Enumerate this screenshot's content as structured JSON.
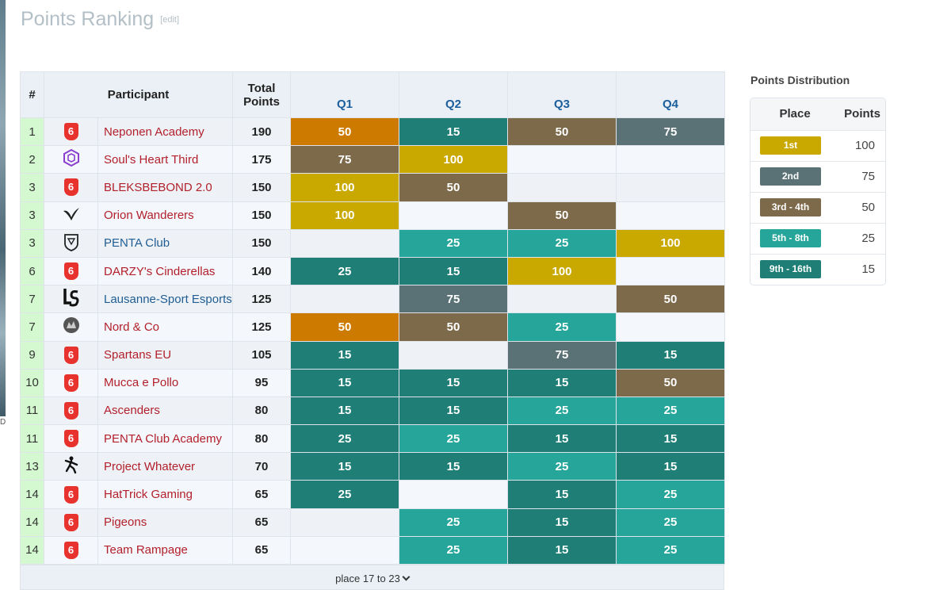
{
  "page": {
    "title": "Points Ranking",
    "edit": "[edit]"
  },
  "table": {
    "headers": {
      "place": "#",
      "participant": "Participant",
      "total": "Total Points",
      "q1": "Q1",
      "q2": "Q2",
      "q3": "Q3",
      "q4": "Q4"
    },
    "rows": [
      {
        "place": "1",
        "name": "Neponen Academy",
        "total": "190",
        "logo": "six-shield-icon",
        "q": [
          "50",
          "15",
          "50",
          "75"
        ],
        "tier": [
          "orange",
          "ninth",
          "third",
          "second"
        ]
      },
      {
        "place": "2",
        "name": "Soul's Heart Third",
        "total": "175",
        "logo": "hexagon-logo-icon",
        "q": [
          "75",
          "100",
          "",
          ""
        ],
        "tier": [
          "third",
          "first",
          "",
          ""
        ]
      },
      {
        "place": "3",
        "name": "BLEKSBEBOND 2.0",
        "total": "150",
        "logo": "six-shield-icon",
        "q": [
          "100",
          "50",
          "",
          ""
        ],
        "tier": [
          "first",
          "third",
          "",
          ""
        ]
      },
      {
        "place": "3",
        "name": "Orion Wanderers",
        "total": "150",
        "logo": "wing-logo-icon",
        "q": [
          "100",
          "",
          "50",
          ""
        ],
        "tier": [
          "first",
          "",
          "third",
          ""
        ]
      },
      {
        "place": "3",
        "name": "PENTA Club",
        "total": "150",
        "logo": "penta-shield-icon",
        "q": [
          "",
          "25",
          "25",
          "100"
        ],
        "tier": [
          "",
          "fifth",
          "fifth",
          "first"
        ],
        "blue": true
      },
      {
        "place": "6",
        "name": "DARZY's Cinderellas",
        "total": "140",
        "logo": "six-shield-icon",
        "q": [
          "25",
          "15",
          "100",
          ""
        ],
        "tier": [
          "ninth",
          "ninth",
          "first",
          ""
        ]
      },
      {
        "place": "7",
        "name": "Lausanne-Sport Esports",
        "total": "125",
        "logo": "ls-logo-icon",
        "q": [
          "",
          "75",
          "",
          "50"
        ],
        "tier": [
          "",
          "second",
          "",
          "third"
        ],
        "blue": true
      },
      {
        "place": "7",
        "name": "Nord & Co",
        "total": "125",
        "logo": "nord-logo-icon",
        "q": [
          "50",
          "50",
          "25",
          ""
        ],
        "tier": [
          "orange",
          "third",
          "fifth",
          ""
        ]
      },
      {
        "place": "9",
        "name": "Spartans EU",
        "total": "105",
        "logo": "six-shield-icon",
        "q": [
          "15",
          "",
          "75",
          "15"
        ],
        "tier": [
          "ninth",
          "",
          "second",
          "ninth"
        ]
      },
      {
        "place": "10",
        "name": "Mucca e Pollo",
        "total": "95",
        "logo": "six-shield-icon",
        "q": [
          "15",
          "15",
          "15",
          "50"
        ],
        "tier": [
          "ninth",
          "ninth",
          "ninth",
          "third"
        ]
      },
      {
        "place": "11",
        "name": "Ascenders",
        "total": "80",
        "logo": "six-shield-icon",
        "q": [
          "15",
          "15",
          "25",
          "25"
        ],
        "tier": [
          "ninth",
          "ninth",
          "fifth",
          "fifth"
        ]
      },
      {
        "place": "11",
        "name": "PENTA Club Academy",
        "total": "80",
        "logo": "six-shield-icon",
        "q": [
          "25",
          "25",
          "15",
          "15"
        ],
        "tier": [
          "ninth",
          "fifth",
          "ninth",
          "ninth"
        ]
      },
      {
        "place": "13",
        "name": "Project Whatever",
        "total": "70",
        "logo": "figure-logo-icon",
        "q": [
          "15",
          "15",
          "25",
          "15"
        ],
        "tier": [
          "ninth",
          "ninth",
          "fifth",
          "ninth"
        ]
      },
      {
        "place": "14",
        "name": "HatTrick Gaming",
        "total": "65",
        "logo": "six-shield-icon",
        "q": [
          "25",
          "",
          "15",
          "25"
        ],
        "tier": [
          "ninth",
          "",
          "ninth",
          "fifth"
        ]
      },
      {
        "place": "14",
        "name": "Pigeons",
        "total": "65",
        "logo": "six-shield-icon",
        "q": [
          "",
          "25",
          "15",
          "25"
        ],
        "tier": [
          "",
          "fifth",
          "ninth",
          "fifth"
        ]
      },
      {
        "place": "14",
        "name": "Team Rampage",
        "total": "65",
        "logo": "six-shield-icon",
        "q": [
          "",
          "25",
          "15",
          "25"
        ],
        "tier": [
          "",
          "fifth",
          "ninth",
          "fifth"
        ]
      }
    ],
    "more": "place 17 to 23"
  },
  "distribution": {
    "title": "Points Distribution",
    "headers": {
      "place": "Place",
      "points": "Points"
    },
    "rows": [
      {
        "label": "1st",
        "points": "100",
        "color": "#c9a800"
      },
      {
        "label": "2nd",
        "points": "75",
        "color": "#5a7276"
      },
      {
        "label": "3rd - 4th",
        "points": "50",
        "color": "#7d6a4a"
      },
      {
        "label": "5th - 8th",
        "points": "25",
        "color": "#26a69a"
      },
      {
        "label": "9th - 16th",
        "points": "15",
        "color": "#1f7f77"
      }
    ]
  },
  "colors": {
    "first": "#c9a800",
    "second": "#5a7276",
    "third": "#7d6a4a",
    "fifth": "#26a69a",
    "ninth": "#1f7f77",
    "orange": "#cc7a00"
  }
}
